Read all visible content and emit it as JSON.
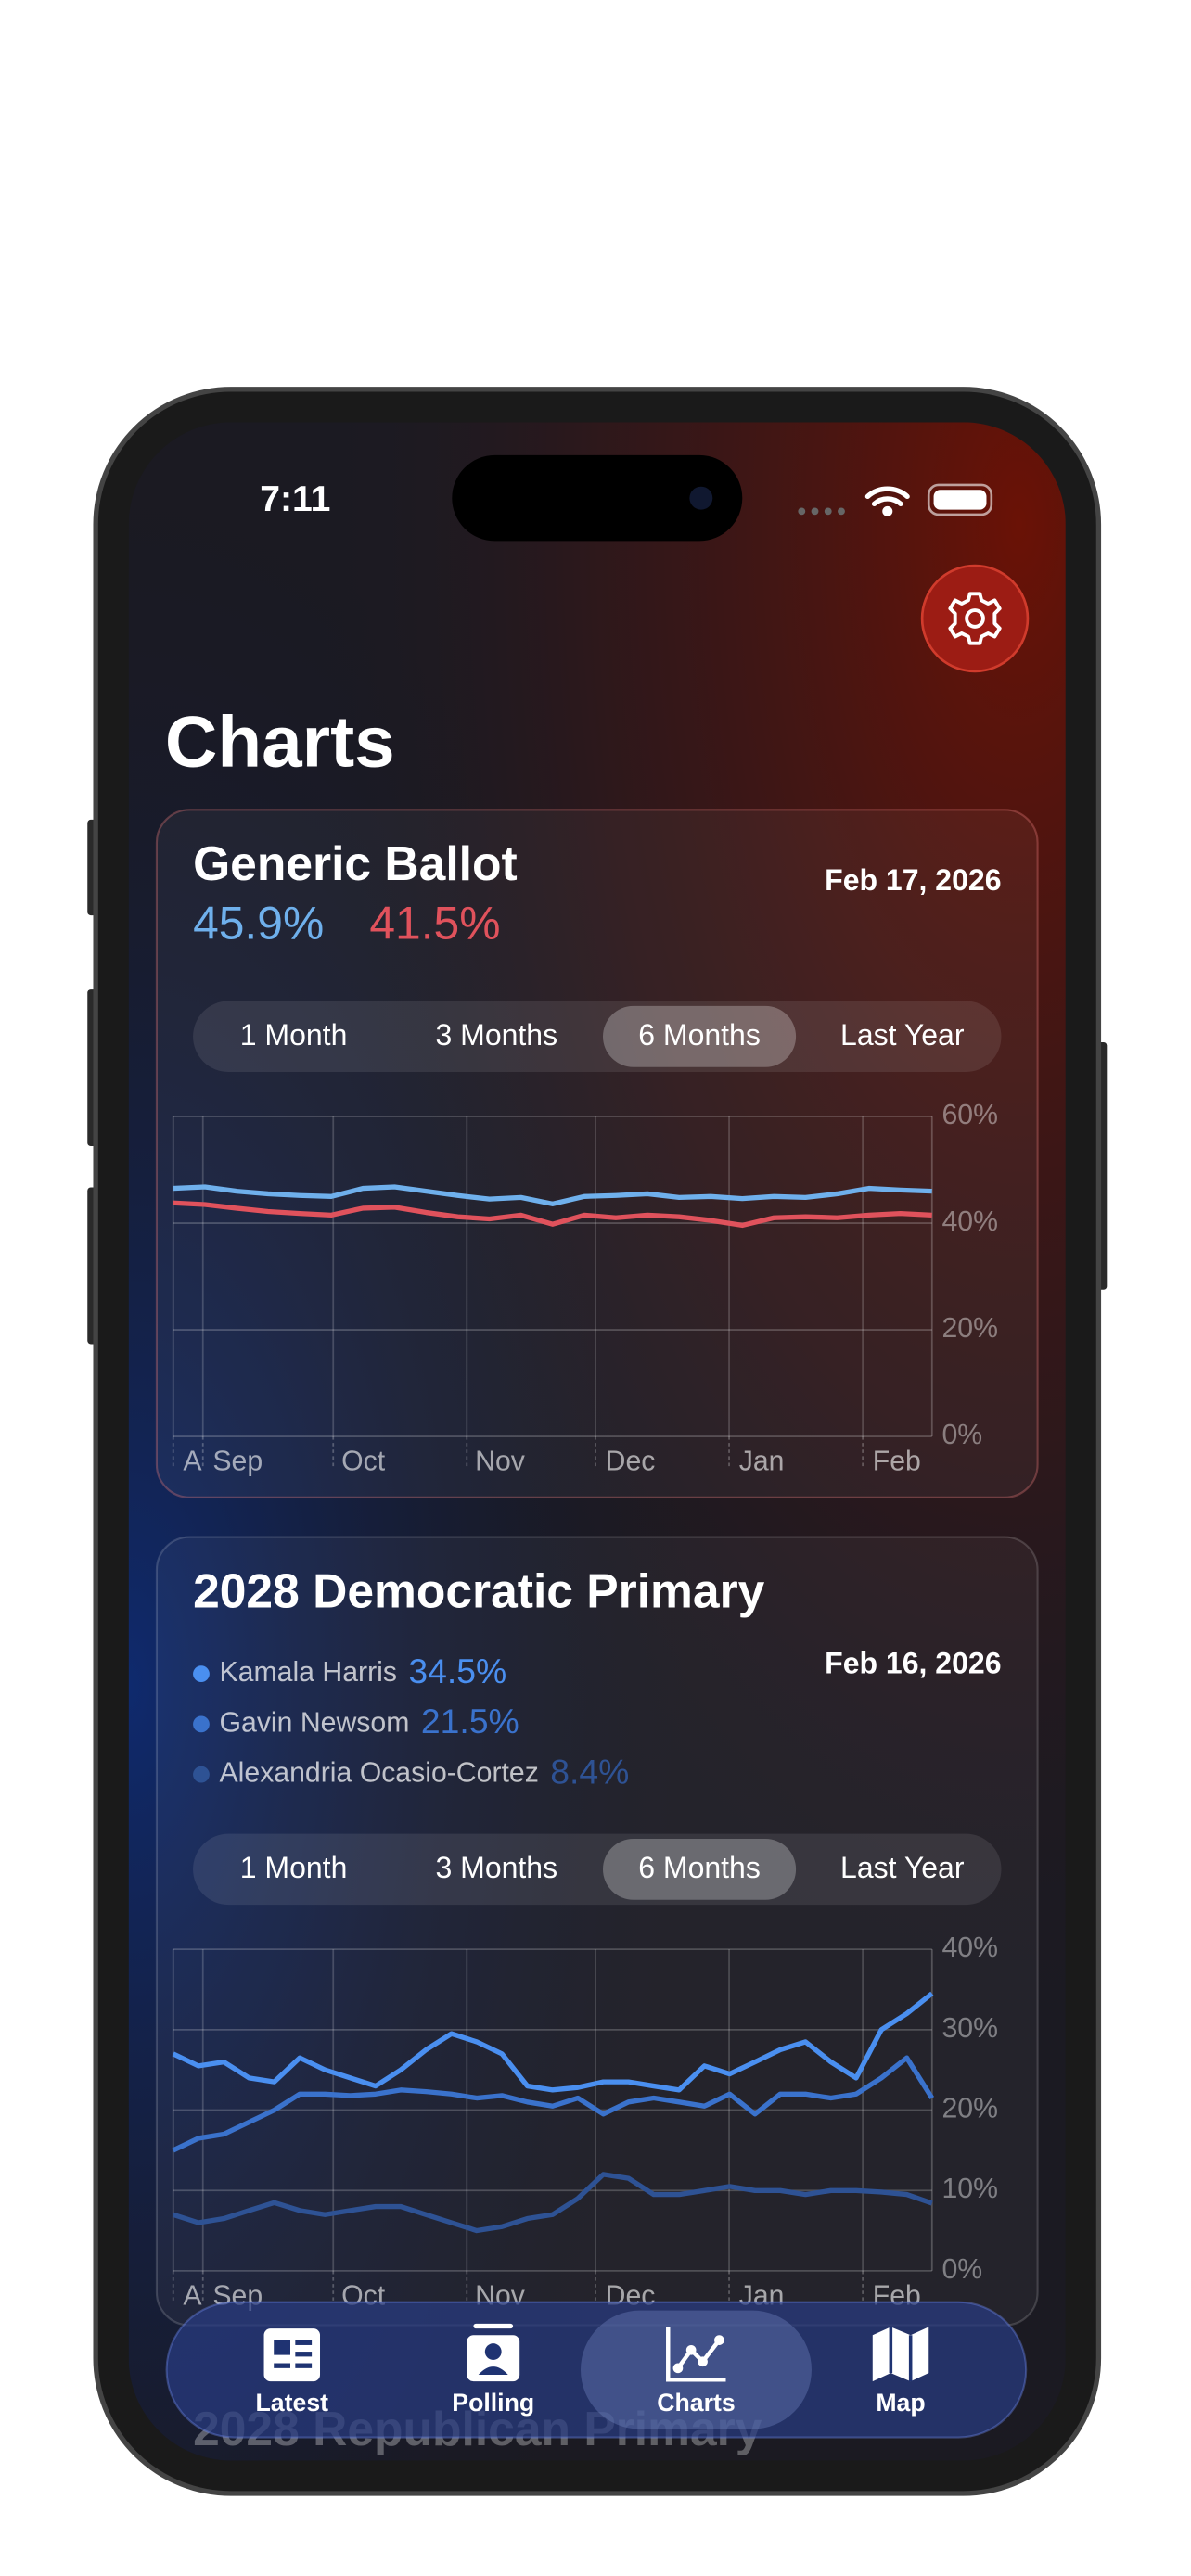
{
  "status_bar": {
    "time": "7:11"
  },
  "page_title": "Charts",
  "cards": [
    {
      "title": "Generic Ballot",
      "date": "Feb 17, 2026",
      "range_options": [
        "1 Month",
        "3 Months",
        "6 Months",
        "Last Year"
      ],
      "selected_range": "6 Months",
      "chart": {
        "type": "line",
        "ylim": [
          0,
          60
        ],
        "yticks": [
          {
            "value": 0,
            "label": "0%"
          },
          {
            "value": 20,
            "label": "20%"
          },
          {
            "value": 40,
            "label": "40%"
          },
          {
            "value": 60,
            "label": "60%"
          }
        ],
        "x_labels": [
          "A",
          "Sep",
          "Oct",
          "Nov",
          "Dec",
          "Jan",
          "Feb"
        ],
        "grid": true,
        "series": [
          {
            "color": "#6fb0ec",
            "latest": {
              "value": 45.9,
              "label": "45.9%"
            },
            "values": [
              46.5,
              46.8,
              46.0,
              45.5,
              45.2,
              45.0,
              46.5,
              46.8,
              46.0,
              45.2,
              44.5,
              44.8,
              43.6,
              45.0,
              45.2,
              45.5,
              44.8,
              45.0,
              44.6,
              45.0,
              44.8,
              45.5,
              46.5,
              46.2,
              46.0
            ]
          },
          {
            "color": "#e0525c",
            "latest": {
              "value": 41.5,
              "label": "41.5%"
            },
            "values": [
              43.8,
              43.5,
              42.8,
              42.2,
              41.8,
              41.5,
              42.8,
              43.0,
              42.0,
              41.2,
              40.8,
              41.5,
              39.8,
              41.5,
              41.0,
              41.5,
              41.2,
              40.5,
              39.6,
              41.0,
              41.2,
              41.0,
              41.5,
              41.8,
              41.5
            ]
          }
        ]
      }
    },
    {
      "title": "2028 Democratic Primary",
      "date": "Feb 16, 2026",
      "range_options": [
        "1 Month",
        "3 Months",
        "6 Months",
        "Last Year"
      ],
      "selected_range": "6 Months",
      "chart": {
        "type": "line",
        "ylim": [
          0,
          40
        ],
        "yticks": [
          {
            "value": 0,
            "label": "0%"
          },
          {
            "value": 10,
            "label": "10%"
          },
          {
            "value": 20,
            "label": "20%"
          },
          {
            "value": 30,
            "label": "30%"
          },
          {
            "value": 40,
            "label": "40%"
          }
        ],
        "x_labels": [
          "A",
          "Sep",
          "Oct",
          "Nov",
          "Dec",
          "Jan",
          "Feb"
        ],
        "grid": true,
        "series": [
          {
            "name": "Kamala Harris",
            "color": "#4a8ff0",
            "latest": {
              "value": 34.5,
              "label": "34.5%"
            },
            "values": [
              27.0,
              25.5,
              26.0,
              24.0,
              23.5,
              26.5,
              25.0,
              24.0,
              23.0,
              25.0,
              27.5,
              29.5,
              28.5,
              27.0,
              23.0,
              22.5,
              22.8,
              23.5,
              23.5,
              23.0,
              22.5,
              25.5,
              24.5,
              26.0,
              27.5,
              28.5,
              26.0,
              24.0,
              30.0,
              32.0,
              34.5
            ]
          },
          {
            "name": "Gavin Newsom",
            "color": "#3a72cc",
            "latest": {
              "value": 21.5,
              "label": "21.5%"
            },
            "values": [
              15.0,
              16.5,
              17.0,
              18.5,
              20.0,
              22.0,
              22.0,
              21.8,
              22.0,
              22.5,
              22.3,
              22.0,
              21.5,
              21.8,
              21.0,
              20.5,
              21.5,
              19.5,
              21.0,
              21.5,
              21.0,
              20.5,
              22.0,
              19.5,
              22.0,
              22.0,
              21.5,
              22.0,
              24.0,
              26.5,
              21.5
            ]
          },
          {
            "name": "Alexandria Ocasio-Cortez",
            "color": "#2e5294",
            "latest": {
              "value": 8.4,
              "label": "8.4%"
            },
            "values": [
              7.0,
              6.0,
              6.5,
              7.5,
              8.5,
              7.5,
              7.0,
              7.5,
              8.0,
              8.0,
              7.0,
              6.0,
              5.0,
              5.5,
              6.5,
              7.0,
              9.0,
              12.0,
              11.5,
              9.5,
              9.5,
              10.0,
              10.5,
              10.0,
              10.0,
              9.5,
              10.0,
              10.0,
              9.8,
              9.5,
              8.4
            ]
          }
        ]
      }
    }
  ],
  "next_card_title": "2028 Republican Primary",
  "tabs": [
    "Latest",
    "Polling",
    "Charts",
    "Map"
  ],
  "selected_tab": "Charts"
}
